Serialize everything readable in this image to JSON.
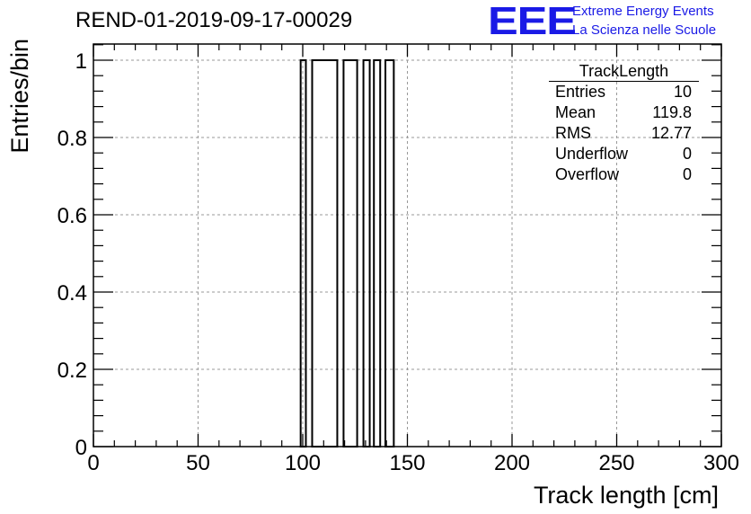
{
  "header": {
    "run_title": "REND-01-2019-09-17-00029",
    "logo_mark": "EEE",
    "logo_line1": "Extreme Energy Events",
    "logo_line2": "La Scienza nelle Scuole"
  },
  "stats": {
    "title": "TrackLength",
    "rows": [
      {
        "label": "Entries",
        "value": "10"
      },
      {
        "label": "Mean",
        "value": "119.8"
      },
      {
        "label": "RMS",
        "value": "12.77"
      },
      {
        "label": "Underflow",
        "value": "0"
      },
      {
        "label": "Overflow",
        "value": "0"
      }
    ]
  },
  "colors": {
    "logo": "#1a1ae6",
    "grid": "#999999"
  },
  "chart_data": {
    "type": "bar",
    "style": "step-histogram",
    "xlabel": "Track length [cm]",
    "ylabel": "Entries/bin",
    "xlim": [
      0,
      300
    ],
    "ylim": [
      0,
      1
    ],
    "xticks": [
      "0",
      "50",
      "100",
      "150",
      "200",
      "250",
      "300"
    ],
    "yticks": [
      "0",
      "0.2",
      "0.4",
      "0.6",
      "0.8",
      "1"
    ],
    "grid": true,
    "bins": [
      {
        "x0": 99,
        "x1": 101.5,
        "value": 1
      },
      {
        "x0": 104.5,
        "x1": 116.5,
        "value": 1
      },
      {
        "x0": 119.5,
        "x1": 126,
        "value": 1
      },
      {
        "x0": 129,
        "x1": 132,
        "value": 1
      },
      {
        "x0": 134,
        "x1": 137,
        "value": 1
      },
      {
        "x0": 139.5,
        "x1": 143.5,
        "value": 1
      }
    ]
  }
}
